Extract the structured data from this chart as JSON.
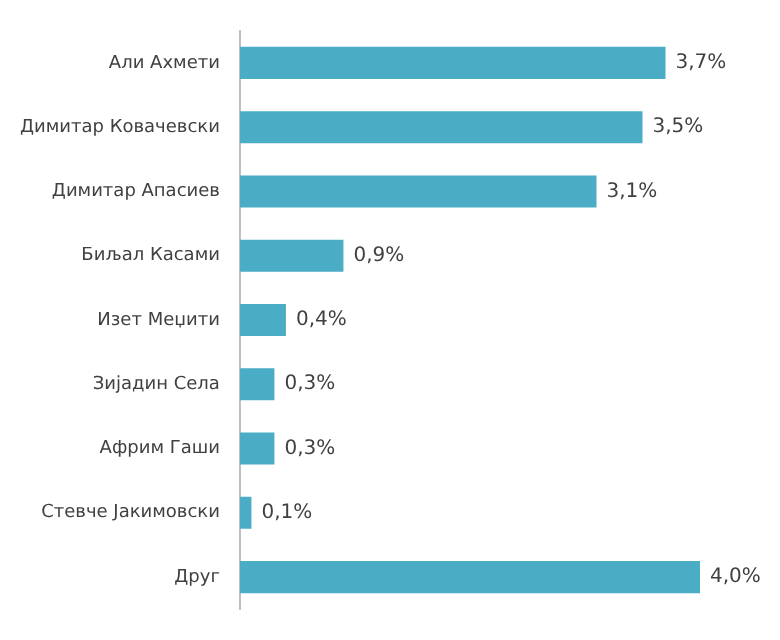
{
  "chart_data": {
    "type": "bar",
    "orientation": "horizontal",
    "categories": [
      "Али Ахмети",
      "Димитар Ковачевски",
      "Димитар Апасиев",
      "Биљал Касами",
      "Изет Меџити",
      "Зијадин Села",
      "Африм Гаши",
      "Стевче Јакимовски",
      "Друг"
    ],
    "values": [
      3.7,
      3.5,
      3.1,
      0.9,
      0.4,
      0.3,
      0.3,
      0.1,
      4.0
    ],
    "value_labels": [
      "3,7%",
      "3,5%",
      "3,1%",
      "0,9%",
      "0,4%",
      "0,3%",
      "0,3%",
      "0,1%",
      "4,0%"
    ],
    "color": "#4bacc6"
  }
}
